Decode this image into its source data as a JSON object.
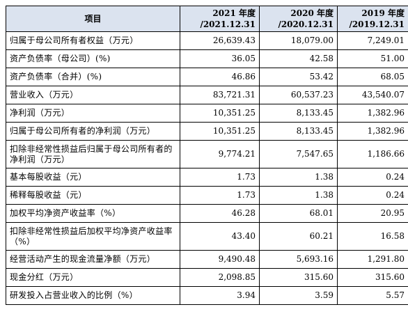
{
  "table": {
    "header": {
      "item_label": "项目",
      "years": [
        {
          "year": "2021 年度",
          "date": "/2021.12.31"
        },
        {
          "year": "2020 年度",
          "date": "/2020.12.31"
        },
        {
          "year": "2019 年度",
          "date": "/2019.12.31"
        }
      ]
    },
    "rows": [
      {
        "label": "归属于母公司所有者权益（万元）",
        "values": [
          "26,639.43",
          "18,079.00",
          "7,249.01"
        ]
      },
      {
        "label": "资产负债率（母公司）(%)",
        "values": [
          "36.05",
          "42.58",
          "51.00"
        ]
      },
      {
        "label": "资产负债率（合并）(%)",
        "values": [
          "46.86",
          "53.42",
          "68.05"
        ]
      },
      {
        "label": "营业收入（万元）",
        "values": [
          "83,721.31",
          "60,537.23",
          "43,540.07"
        ]
      },
      {
        "label": "净利润（万元）",
        "values": [
          "10,351.25",
          "8,133.45",
          "1,382.96"
        ]
      },
      {
        "label": "归属于母公司所有者的净利润（万元）",
        "values": [
          "10,351.25",
          "8,133.45",
          "1,382.96"
        ]
      },
      {
        "label": "扣除非经常性损益后归属于母公司所有者的净利润（万元）",
        "values": [
          "9,774.21",
          "7,547.65",
          "1,186.66"
        ]
      },
      {
        "label": "基本每股收益（元）",
        "values": [
          "1.73",
          "1.38",
          "0.24"
        ]
      },
      {
        "label": "稀释每股收益（元）",
        "values": [
          "1.73",
          "1.38",
          "0.24"
        ]
      },
      {
        "label": "加权平均净资产收益率（%）",
        "values": [
          "46.28",
          "68.01",
          "20.95"
        ]
      },
      {
        "label": "扣除非经常性损益后加权平均净资产收益率（%）",
        "values": [
          "43.40",
          "60.21",
          "16.58"
        ]
      },
      {
        "label": "经营活动产生的现金流量净额（万元）",
        "values": [
          "9,490.48",
          "5,693.16",
          "1,291.80"
        ]
      },
      {
        "label": "现金分红（万元）",
        "values": [
          "2,098.85",
          "315.60",
          "315.60"
        ]
      },
      {
        "label": "研发投入占营业收入的比例（%）",
        "values": [
          "3.94",
          "3.59",
          "5.57"
        ]
      }
    ]
  },
  "colors": {
    "header_background": "#dbe3ef",
    "border": "#000000",
    "text": "#000000"
  }
}
